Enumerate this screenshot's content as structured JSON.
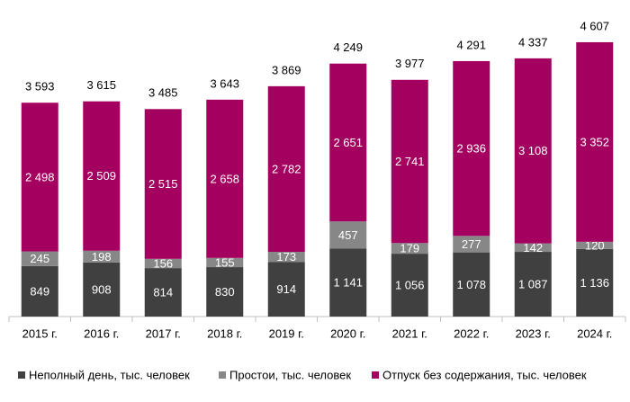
{
  "chart_data": {
    "type": "stacked_bar",
    "categories": [
      "2015 г.",
      "2016 г.",
      "2017 г.",
      "2018 г.",
      "2019 г.",
      "2020 г.",
      "2021 г.",
      "2022 г.",
      "2023 г.",
      "2024 г."
    ],
    "series": [
      {
        "name": "Неполный день, тыс. человек",
        "color": "#404040",
        "values": [
          849,
          908,
          814,
          830,
          914,
          1141,
          1056,
          1078,
          1087,
          1136
        ],
        "value_labels": [
          "849",
          "908",
          "814",
          "830",
          "914",
          "1 141",
          "1 056",
          "1 078",
          "1 087",
          "1 136"
        ]
      },
      {
        "name": "Простои, тыс. человек",
        "color": "#878787",
        "values": [
          245,
          198,
          156,
          155,
          173,
          457,
          179,
          277,
          142,
          120
        ],
        "value_labels": [
          "245",
          "198",
          "156",
          "155",
          "173",
          "457",
          "179",
          "277",
          "142",
          "120"
        ]
      },
      {
        "name": "Отпуск без содержания, тыс. человек",
        "color": "#a3005f",
        "values": [
          2498,
          2509,
          2515,
          2658,
          2782,
          2651,
          2741,
          2936,
          3108,
          3352
        ],
        "value_labels": [
          "2 498",
          "2 509",
          "2 515",
          "2 658",
          "2 782",
          "2 651",
          "2 741",
          "2 936",
          "3 108",
          "3 352"
        ]
      }
    ],
    "totals": [
      3593,
      3615,
      3485,
      3643,
      3869,
      4249,
      3977,
      4291,
      4337,
      4607
    ],
    "total_labels": [
      "3 593",
      "3 615",
      "3 485",
      "3 643",
      "3 869",
      "4 249",
      "3 977",
      "4 291",
      "4 337",
      "4 607"
    ],
    "ylim": [
      0,
      5000
    ]
  }
}
